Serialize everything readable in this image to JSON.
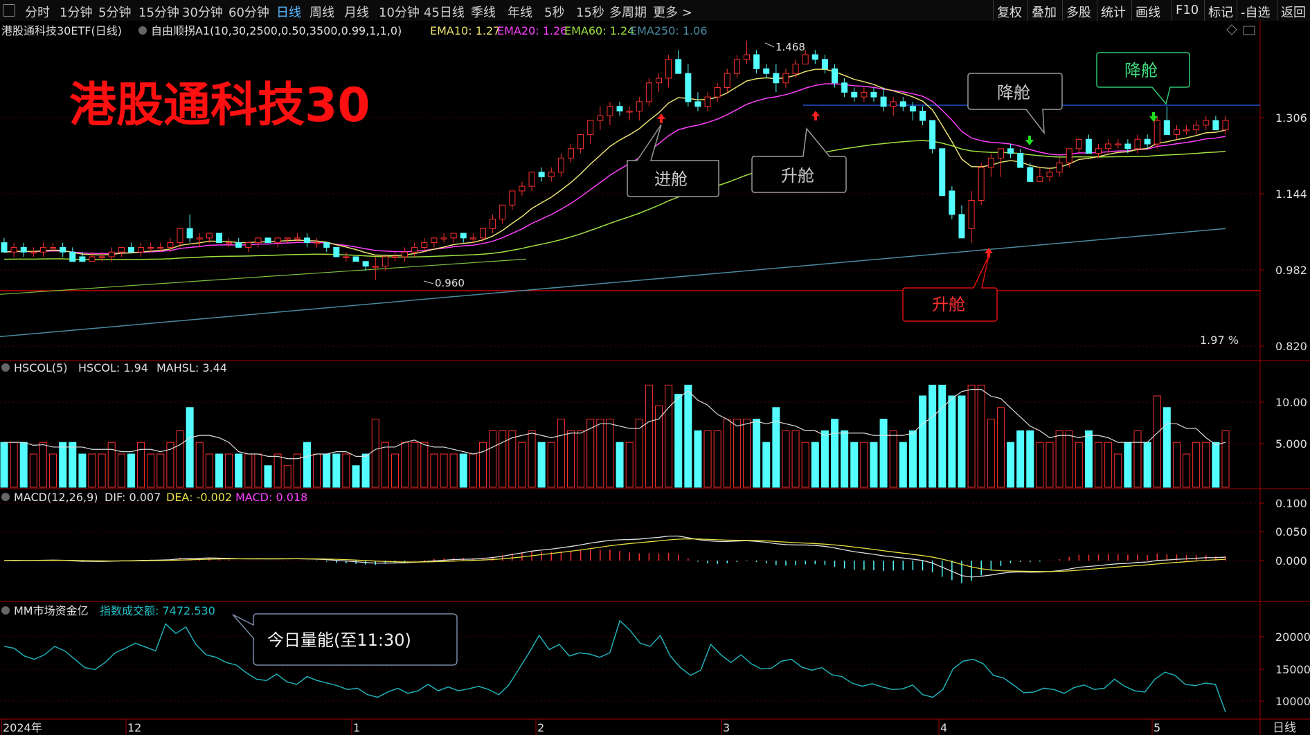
{
  "toolbar": {
    "periods": [
      "分时",
      "1分钟",
      "5分钟",
      "15分钟",
      "30分钟",
      "60分钟",
      "日线",
      "周线",
      "月线",
      "10分钟",
      "45日线",
      "季线",
      "年线",
      "5秒",
      "15秒",
      "多周期",
      "更多 >"
    ],
    "active": "日线",
    "right_buttons": [
      "复权",
      "叠加",
      "多股",
      "统计",
      "画线",
      "F10",
      "标记",
      "-自选",
      "返回"
    ]
  },
  "main_header": {
    "name": "港股通科技30ETF(日线)",
    "indicator": "自由顺拐A1(10,30,2500,0.50,3500,0.99,1,1,0)",
    "ema10": "EMA10: 1.27",
    "ema20": "EMA20: 1.26",
    "ema60": "EMA60: 1.24",
    "ema250": "EMA250: 1.06"
  },
  "big_title": "港股通科技30",
  "price_annotations": {
    "high": "1.468",
    "low": "0.960",
    "pct": "1.97 %"
  },
  "callouts": {
    "jincang": "进舱",
    "shengcang1": "升舱",
    "jiangcang1": "降舱",
    "jiangcang2": "降舱",
    "shengcang2": "升舱",
    "volume_note": "今日量能(至11:30)"
  },
  "y_axis_main": [
    "1.306",
    "1.144",
    "0.982",
    "0.820"
  ],
  "vol_header": {
    "name": "HSCOL(5)",
    "hscol": "HSCOL: 1.94",
    "mahsl": "MAHSL: 3.44"
  },
  "y_axis_vol": [
    "10.00",
    "5.000"
  ],
  "macd_header": {
    "name": "MACD(12,26,9)",
    "dif": "DIF: 0.007",
    "dea": "DEA: -0.002",
    "macd": "MACD: 0.018"
  },
  "y_axis_macd": [
    "0.100",
    "0.050",
    "0.000"
  ],
  "fund_header": {
    "name": "MM市场资金亿",
    "label": "指数成交额: 7472.530"
  },
  "y_axis_fund": [
    "20000",
    "15000",
    "10000"
  ],
  "x_axis": [
    "2024年",
    "12",
    "1",
    "2",
    "3",
    "4",
    "5"
  ],
  "period_label": "日线",
  "colors": {
    "up": "#ff3030",
    "down": "#54ffff",
    "ema10": "#e8e070",
    "ema20": "#ff40ff",
    "ema60": "#a0e040",
    "ema250": "#4a8aa0",
    "fund_line": "#20b0b8"
  },
  "chart_data": {
    "type": "candlestick",
    "ylim": [
      0.82,
      1.47
    ],
    "candles_ohlc": [
      [
        1.04,
        1.05,
        1.02,
        1.02
      ],
      [
        1.02,
        1.04,
        1.01,
        1.03
      ],
      [
        1.03,
        1.04,
        1.01,
        1.02
      ],
      [
        1.02,
        1.03,
        1.01,
        1.02
      ],
      [
        1.02,
        1.04,
        1.01,
        1.03
      ],
      [
        1.03,
        1.04,
        1.02,
        1.03
      ],
      [
        1.03,
        1.04,
        1.01,
        1.02
      ],
      [
        1.02,
        1.03,
        1.0,
        1.0
      ],
      [
        1.01,
        1.02,
        1.0,
        1.0
      ],
      [
        1.0,
        1.02,
        1.0,
        1.01
      ],
      [
        1.01,
        1.02,
        1.0,
        1.01
      ],
      [
        1.01,
        1.03,
        1.0,
        1.02
      ],
      [
        1.02,
        1.03,
        1.01,
        1.03
      ],
      [
        1.03,
        1.04,
        1.02,
        1.02
      ],
      [
        1.02,
        1.04,
        1.01,
        1.03
      ],
      [
        1.03,
        1.04,
        1.02,
        1.03
      ],
      [
        1.03,
        1.04,
        1.02,
        1.03
      ],
      [
        1.03,
        1.05,
        1.02,
        1.04
      ],
      [
        1.04,
        1.07,
        1.03,
        1.07
      ],
      [
        1.07,
        1.1,
        1.04,
        1.05
      ],
      [
        1.05,
        1.06,
        1.03,
        1.05
      ],
      [
        1.05,
        1.06,
        1.04,
        1.06
      ],
      [
        1.06,
        1.06,
        1.04,
        1.04
      ],
      [
        1.04,
        1.05,
        1.03,
        1.04
      ],
      [
        1.04,
        1.05,
        1.03,
        1.03
      ],
      [
        1.03,
        1.04,
        1.02,
        1.04
      ],
      [
        1.04,
        1.05,
        1.03,
        1.05
      ],
      [
        1.05,
        1.05,
        1.04,
        1.04
      ],
      [
        1.04,
        1.05,
        1.03,
        1.05
      ],
      [
        1.05,
        1.05,
        1.04,
        1.05
      ],
      [
        1.05,
        1.06,
        1.04,
        1.05
      ],
      [
        1.05,
        1.06,
        1.03,
        1.04
      ],
      [
        1.04,
        1.05,
        1.03,
        1.04
      ],
      [
        1.04,
        1.04,
        1.02,
        1.03
      ],
      [
        1.03,
        1.03,
        1.01,
        1.01
      ],
      [
        1.01,
        1.02,
        1.0,
        1.01
      ],
      [
        1.01,
        1.01,
        1.0,
        1.0
      ],
      [
        1.0,
        1.0,
        0.98,
        0.99
      ],
      [
        0.99,
        1.01,
        0.96,
        0.99
      ],
      [
        0.99,
        1.01,
        0.98,
        1.01
      ],
      [
        1.01,
        1.02,
        1.0,
        1.01
      ],
      [
        1.01,
        1.03,
        1.0,
        1.02
      ],
      [
        1.02,
        1.04,
        1.01,
        1.03
      ],
      [
        1.03,
        1.05,
        1.02,
        1.04
      ],
      [
        1.04,
        1.05,
        1.03,
        1.05
      ],
      [
        1.05,
        1.06,
        1.04,
        1.05
      ],
      [
        1.05,
        1.06,
        1.04,
        1.06
      ],
      [
        1.06,
        1.06,
        1.04,
        1.05
      ],
      [
        1.05,
        1.06,
        1.04,
        1.05
      ],
      [
        1.05,
        1.07,
        1.04,
        1.07
      ],
      [
        1.07,
        1.1,
        1.06,
        1.09
      ],
      [
        1.09,
        1.12,
        1.08,
        1.12
      ],
      [
        1.12,
        1.15,
        1.11,
        1.15
      ],
      [
        1.15,
        1.17,
        1.14,
        1.16
      ],
      [
        1.16,
        1.19,
        1.15,
        1.19
      ],
      [
        1.19,
        1.2,
        1.17,
        1.18
      ],
      [
        1.18,
        1.2,
        1.17,
        1.19
      ],
      [
        1.19,
        1.23,
        1.18,
        1.22
      ],
      [
        1.22,
        1.25,
        1.21,
        1.24
      ],
      [
        1.24,
        1.27,
        1.23,
        1.27
      ],
      [
        1.27,
        1.3,
        1.25,
        1.3
      ],
      [
        1.3,
        1.33,
        1.28,
        1.31
      ],
      [
        1.31,
        1.34,
        1.29,
        1.33
      ],
      [
        1.33,
        1.34,
        1.31,
        1.32
      ],
      [
        1.32,
        1.33,
        1.3,
        1.32
      ],
      [
        1.32,
        1.35,
        1.3,
        1.34
      ],
      [
        1.34,
        1.39,
        1.33,
        1.38
      ],
      [
        1.38,
        1.4,
        1.36,
        1.39
      ],
      [
        1.39,
        1.44,
        1.37,
        1.43
      ],
      [
        1.43,
        1.45,
        1.4,
        1.4
      ],
      [
        1.4,
        1.42,
        1.33,
        1.34
      ],
      [
        1.34,
        1.36,
        1.32,
        1.33
      ],
      [
        1.33,
        1.36,
        1.32,
        1.35
      ],
      [
        1.35,
        1.38,
        1.34,
        1.37
      ],
      [
        1.37,
        1.41,
        1.36,
        1.4
      ],
      [
        1.4,
        1.44,
        1.39,
        1.43
      ],
      [
        1.43,
        1.47,
        1.42,
        1.44
      ],
      [
        1.44,
        1.45,
        1.4,
        1.41
      ],
      [
        1.41,
        1.42,
        1.39,
        1.4
      ],
      [
        1.4,
        1.42,
        1.36,
        1.38
      ],
      [
        1.38,
        1.41,
        1.37,
        1.4
      ],
      [
        1.4,
        1.43,
        1.39,
        1.42
      ],
      [
        1.42,
        1.45,
        1.42,
        1.44
      ],
      [
        1.44,
        1.45,
        1.42,
        1.43
      ],
      [
        1.43,
        1.44,
        1.4,
        1.41
      ],
      [
        1.41,
        1.42,
        1.37,
        1.38
      ],
      [
        1.38,
        1.39,
        1.35,
        1.36
      ],
      [
        1.36,
        1.37,
        1.34,
        1.35
      ],
      [
        1.35,
        1.37,
        1.34,
        1.36
      ],
      [
        1.36,
        1.37,
        1.34,
        1.35
      ],
      [
        1.35,
        1.37,
        1.32,
        1.33
      ],
      [
        1.33,
        1.35,
        1.31,
        1.34
      ],
      [
        1.34,
        1.35,
        1.32,
        1.33
      ],
      [
        1.33,
        1.34,
        1.3,
        1.32
      ],
      [
        1.32,
        1.33,
        1.29,
        1.3
      ],
      [
        1.3,
        1.3,
        1.23,
        1.24
      ],
      [
        1.24,
        1.24,
        1.15,
        1.14
      ],
      [
        1.15,
        1.16,
        1.09,
        1.1
      ],
      [
        1.1,
        1.12,
        1.05,
        1.05
      ],
      [
        1.07,
        1.15,
        1.04,
        1.13
      ],
      [
        1.13,
        1.21,
        1.12,
        1.2
      ],
      [
        1.2,
        1.23,
        1.18,
        1.22
      ],
      [
        1.22,
        1.24,
        1.18,
        1.24
      ],
      [
        1.24,
        1.25,
        1.22,
        1.23
      ],
      [
        1.23,
        1.24,
        1.2,
        1.2
      ],
      [
        1.2,
        1.21,
        1.17,
        1.17
      ],
      [
        1.17,
        1.2,
        1.17,
        1.18
      ],
      [
        1.18,
        1.2,
        1.17,
        1.19
      ],
      [
        1.19,
        1.22,
        1.18,
        1.21
      ],
      [
        1.21,
        1.24,
        1.2,
        1.24
      ],
      [
        1.24,
        1.26,
        1.23,
        1.26
      ],
      [
        1.26,
        1.27,
        1.23,
        1.23
      ],
      [
        1.23,
        1.25,
        1.22,
        1.24
      ],
      [
        1.24,
        1.26,
        1.23,
        1.25
      ],
      [
        1.25,
        1.26,
        1.24,
        1.25
      ],
      [
        1.25,
        1.26,
        1.23,
        1.24
      ],
      [
        1.24,
        1.27,
        1.23,
        1.26
      ],
      [
        1.26,
        1.27,
        1.24,
        1.25
      ],
      [
        1.25,
        1.31,
        1.24,
        1.3
      ],
      [
        1.3,
        1.33,
        1.27,
        1.27
      ],
      [
        1.27,
        1.29,
        1.26,
        1.28
      ],
      [
        1.28,
        1.29,
        1.27,
        1.28
      ],
      [
        1.28,
        1.3,
        1.27,
        1.29
      ],
      [
        1.29,
        1.31,
        1.28,
        1.3
      ],
      [
        1.3,
        1.31,
        1.28,
        1.28
      ],
      [
        1.28,
        1.31,
        1.27,
        1.3
      ]
    ]
  }
}
